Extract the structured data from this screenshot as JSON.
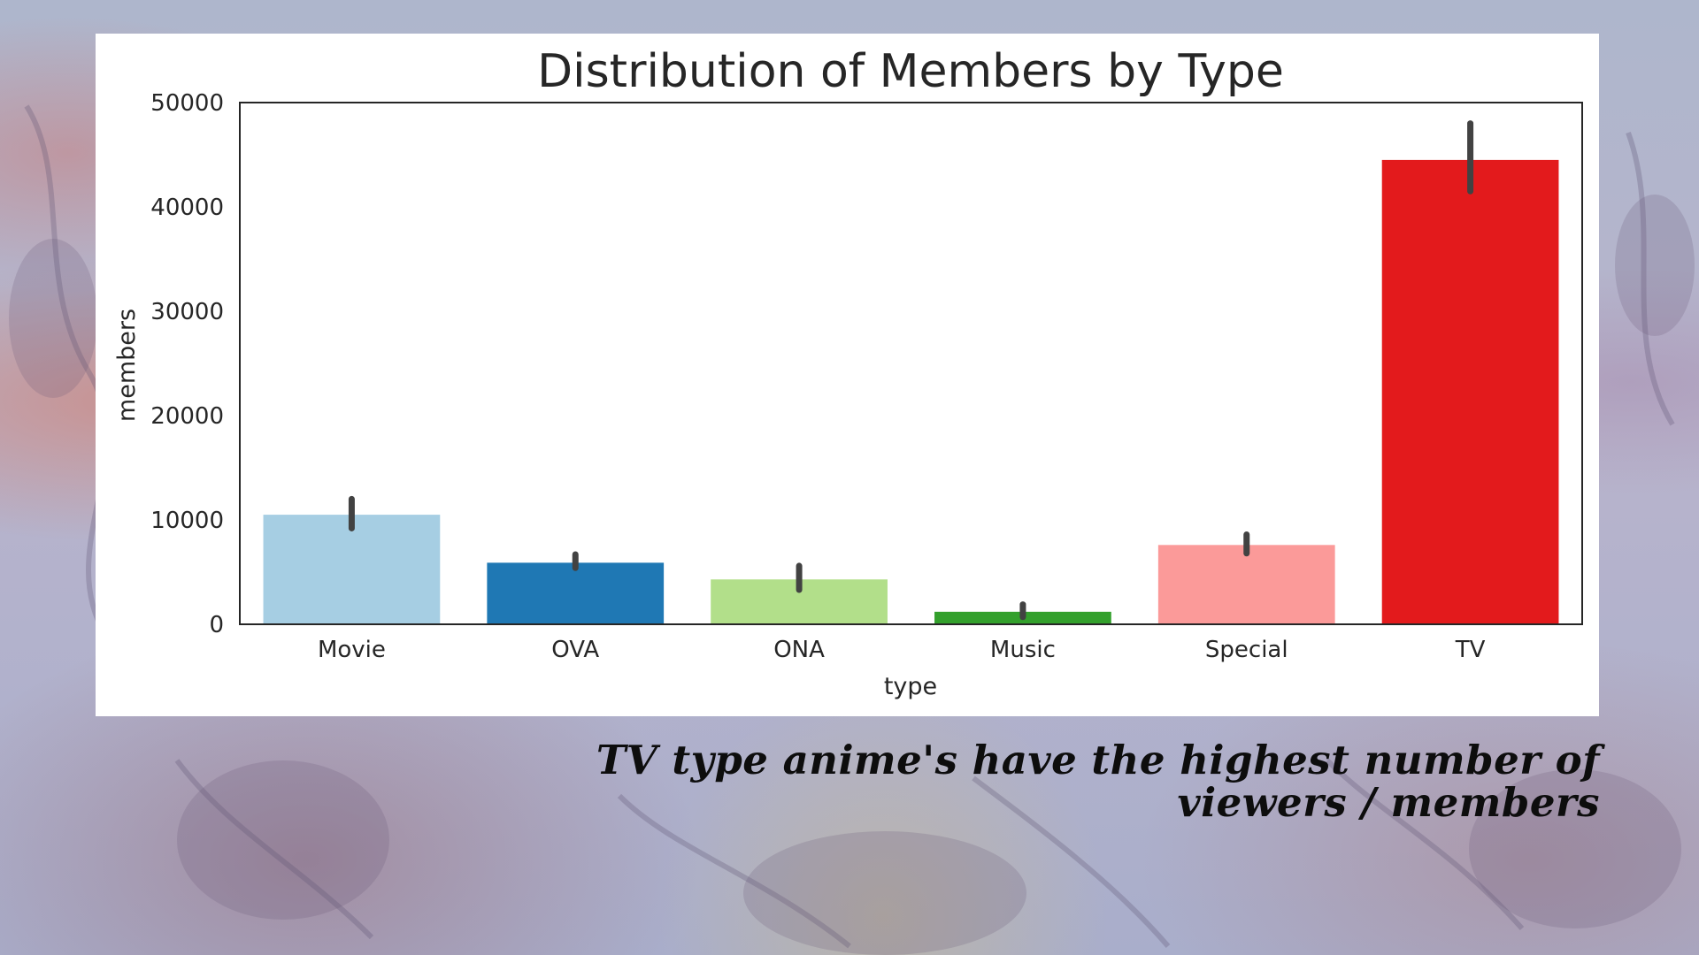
{
  "chart_data": {
    "type": "bar",
    "title": "Distribution of Members by Type",
    "xlabel": "type",
    "ylabel": "members",
    "categories": [
      "Movie",
      "OVA",
      "ONA",
      "Music",
      "Special",
      "TV"
    ],
    "values": [
      10500,
      5900,
      4300,
      1200,
      7600,
      44500
    ],
    "error_bars": [
      [
        9200,
        12000
      ],
      [
        5400,
        6700
      ],
      [
        3300,
        5600
      ],
      [
        700,
        1900
      ],
      [
        6800,
        8600
      ],
      [
        41500,
        48000
      ]
    ],
    "colors": [
      "#a6cee3",
      "#1f78b4",
      "#b2df8a",
      "#33a02c",
      "#fb9a99",
      "#e31a1c"
    ],
    "ylim": [
      0,
      50000
    ],
    "yticks": [
      0,
      10000,
      20000,
      30000,
      40000,
      50000
    ],
    "ytick_labels": [
      "0",
      "10000",
      "20000",
      "30000",
      "40000",
      "50000"
    ],
    "grid": false
  },
  "caption": {
    "line1": "TV type anime's have the highest number of",
    "line2": "viewers / members"
  }
}
